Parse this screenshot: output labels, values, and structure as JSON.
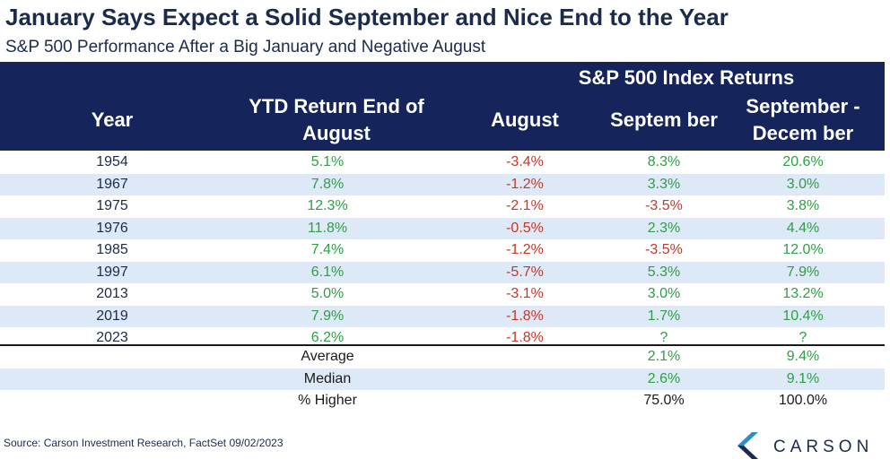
{
  "title": "January Says Expect a Solid September and Nice End to the Year",
  "subtitle": "S&P 500 Performance After a Big January and Negative August",
  "header": {
    "group_label": "S&P 500 Index Returns",
    "col_year": "Year",
    "col_ytd_line1": "YTD Return End of",
    "col_ytd_line2": "August",
    "col_august": "August",
    "col_september": "Septem ber",
    "col_sepdec_line1": "September -",
    "col_sepdec_line2": "Decem ber"
  },
  "rows": [
    {
      "year": "1954",
      "ytd": "5.1%",
      "august": "-3.4%",
      "september": "8.3%",
      "sep_dec": "20.6%"
    },
    {
      "year": "1967",
      "ytd": "7.8%",
      "august": "-1.2%",
      "september": "3.3%",
      "sep_dec": "3.0%"
    },
    {
      "year": "1975",
      "ytd": "12.3%",
      "august": "-2.1%",
      "september": "-3.5%",
      "sep_dec": "3.8%"
    },
    {
      "year": "1976",
      "ytd": "11.8%",
      "august": "-0.5%",
      "september": "2.3%",
      "sep_dec": "4.4%"
    },
    {
      "year": "1985",
      "ytd": "7.4%",
      "august": "-1.2%",
      "september": "-3.5%",
      "sep_dec": "12.0%"
    },
    {
      "year": "1997",
      "ytd": "6.1%",
      "august": "-5.7%",
      "september": "5.3%",
      "sep_dec": "7.9%"
    },
    {
      "year": "2013",
      "ytd": "5.0%",
      "august": "-3.1%",
      "september": "3.0%",
      "sep_dec": "13.2%"
    },
    {
      "year": "2019",
      "ytd": "7.9%",
      "august": "-1.8%",
      "september": "1.7%",
      "sep_dec": "10.4%"
    },
    {
      "year": "2023",
      "ytd": "6.2%",
      "august": "-1.8%",
      "september": "?",
      "sep_dec": "?"
    }
  ],
  "stats": [
    {
      "label": "Average",
      "september": "2.1%",
      "sep_dec": "9.4%"
    },
    {
      "label": "Median",
      "september": "2.6%",
      "sep_dec": "9.1%"
    },
    {
      "label": "% Higher",
      "september": "75.0%",
      "sep_dec": "100.0%"
    }
  ],
  "colors": {
    "header_bg": "#15245a",
    "positive": "#2f9e44",
    "negative": "#c0392b",
    "alt_row": "#dde9f7"
  },
  "source": "Source: Carson Investment Research, FactSet 09/02/2023",
  "logo": {
    "text": "CARSON",
    "icon": "carson-chevron-icon"
  }
}
